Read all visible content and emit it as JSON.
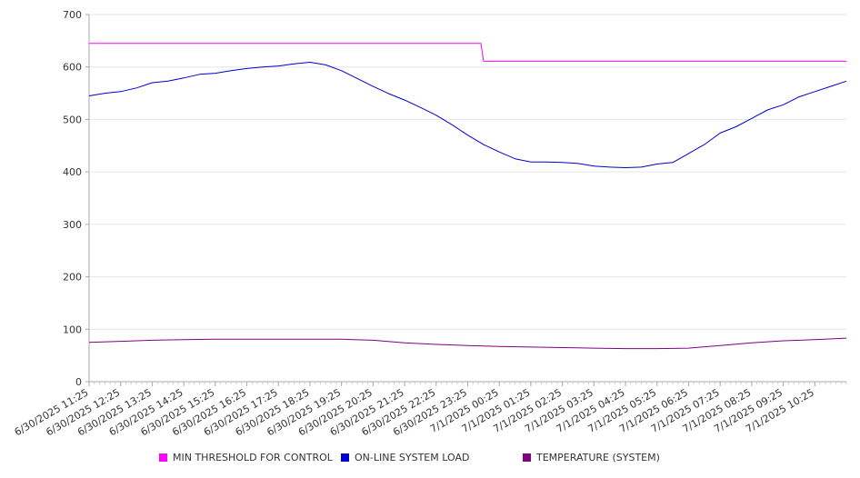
{
  "chart_data": {
    "type": "line",
    "title": "",
    "xlabel": "",
    "ylabel": "",
    "ylim": [
      0,
      700
    ],
    "y_ticks": [
      0,
      100,
      200,
      300,
      400,
      500,
      600,
      700
    ],
    "x_tick_labels": [
      "6/30/2025 11:25",
      "6/30/2025 12:25",
      "6/30/2025 13:25",
      "6/30/2025 14:25",
      "6/30/2025 15:25",
      "6/30/2025 16:25",
      "6/30/2025 17:25",
      "6/30/2025 18:25",
      "6/30/2025 19:25",
      "6/30/2025 20:25",
      "6/30/2025 21:25",
      "6/30/2025 22:25",
      "6/30/2025 23:25",
      "7/1/2025 00:25",
      "7/1/2025 01:25",
      "7/1/2025 02:25",
      "7/1/2025 03:25",
      "7/1/2025 04:25",
      "7/1/2025 05:25",
      "7/1/2025 06:25",
      "7/1/2025 07:25",
      "7/1/2025 08:25",
      "7/1/2025 09:25",
      "7/1/2025 10:25"
    ],
    "x_range": [
      "6/30/2025 11:25",
      "7/1/2025 11:25"
    ],
    "grid": "horizontal",
    "legend_position": "bottom",
    "series": [
      {
        "name": "MIN THRESHOLD FOR CONTROL",
        "color": "#ff00ff",
        "points": [
          [
            "6/30/2025 11:25",
            645
          ],
          [
            "6/30/2025 23:50",
            645
          ],
          [
            "6/30/2025 23:55",
            611
          ],
          [
            "7/1/2025 11:25",
            611
          ]
        ]
      },
      {
        "name": "ON-LINE SYSTEM LOAD",
        "color": "#0000cc",
        "points": [
          [
            "6/30/2025 11:25",
            545
          ],
          [
            "6/30/2025 11:55",
            550
          ],
          [
            "6/30/2025 12:25",
            553
          ],
          [
            "6/30/2025 12:55",
            560
          ],
          [
            "6/30/2025 13:25",
            570
          ],
          [
            "6/30/2025 13:55",
            573
          ],
          [
            "6/30/2025 14:25",
            579
          ],
          [
            "6/30/2025 14:55",
            586
          ],
          [
            "6/30/2025 15:25",
            588
          ],
          [
            "6/30/2025 15:55",
            593
          ],
          [
            "6/30/2025 16:25",
            597
          ],
          [
            "6/30/2025 16:55",
            600
          ],
          [
            "6/30/2025 17:25",
            602
          ],
          [
            "6/30/2025 17:55",
            606
          ],
          [
            "6/30/2025 18:25",
            609
          ],
          [
            "6/30/2025 18:55",
            604
          ],
          [
            "6/30/2025 19:25",
            593
          ],
          [
            "6/30/2025 19:55",
            578
          ],
          [
            "6/30/2025 20:25",
            563
          ],
          [
            "6/30/2025 20:55",
            549
          ],
          [
            "6/30/2025 21:25",
            537
          ],
          [
            "6/30/2025 21:55",
            523
          ],
          [
            "6/30/2025 22:25",
            508
          ],
          [
            "6/30/2025 22:55",
            490
          ],
          [
            "6/30/2025 23:25",
            470
          ],
          [
            "6/30/2025 23:55",
            452
          ],
          [
            "7/1/2025 00:25",
            438
          ],
          [
            "7/1/2025 00:55",
            425
          ],
          [
            "7/1/2025 01:25",
            419
          ],
          [
            "7/1/2025 01:55",
            419
          ],
          [
            "7/1/2025 02:25",
            418
          ],
          [
            "7/1/2025 02:55",
            416
          ],
          [
            "7/1/2025 03:25",
            411
          ],
          [
            "7/1/2025 03:55",
            409
          ],
          [
            "7/1/2025 04:25",
            408
          ],
          [
            "7/1/2025 04:55",
            409
          ],
          [
            "7/1/2025 05:25",
            415
          ],
          [
            "7/1/2025 05:55",
            418
          ],
          [
            "7/1/2025 06:25",
            435
          ],
          [
            "7/1/2025 06:55",
            452
          ],
          [
            "7/1/2025 07:25",
            474
          ],
          [
            "7/1/2025 07:55",
            486
          ],
          [
            "7/1/2025 08:25",
            502
          ],
          [
            "7/1/2025 08:55",
            518
          ],
          [
            "7/1/2025 09:25",
            528
          ],
          [
            "7/1/2025 09:55",
            543
          ],
          [
            "7/1/2025 10:25",
            553
          ],
          [
            "7/1/2025 10:55",
            563
          ],
          [
            "7/1/2025 11:25",
            573
          ]
        ]
      },
      {
        "name": "TEMPERATURE (SYSTEM)",
        "color": "#800080",
        "points": [
          [
            "6/30/2025 11:25",
            75
          ],
          [
            "6/30/2025 12:25",
            77
          ],
          [
            "6/30/2025 13:25",
            79
          ],
          [
            "6/30/2025 14:25",
            80
          ],
          [
            "6/30/2025 15:25",
            81
          ],
          [
            "6/30/2025 16:25",
            81
          ],
          [
            "6/30/2025 17:25",
            81
          ],
          [
            "6/30/2025 18:25",
            81
          ],
          [
            "6/30/2025 19:25",
            81
          ],
          [
            "6/30/2025 20:25",
            79
          ],
          [
            "6/30/2025 21:25",
            74
          ],
          [
            "6/30/2025 22:25",
            71
          ],
          [
            "6/30/2025 23:25",
            69
          ],
          [
            "7/1/2025 00:25",
            67
          ],
          [
            "7/1/2025 01:25",
            66
          ],
          [
            "7/1/2025 02:25",
            65
          ],
          [
            "7/1/2025 03:25",
            64
          ],
          [
            "7/1/2025 04:25",
            63
          ],
          [
            "7/1/2025 05:25",
            63
          ],
          [
            "7/1/2025 06:25",
            64
          ],
          [
            "7/1/2025 07:25",
            69
          ],
          [
            "7/1/2025 08:25",
            74
          ],
          [
            "7/1/2025 09:25",
            78
          ],
          [
            "7/1/2025 10:25",
            80
          ],
          [
            "7/1/2025 11:25",
            83
          ]
        ]
      }
    ]
  }
}
